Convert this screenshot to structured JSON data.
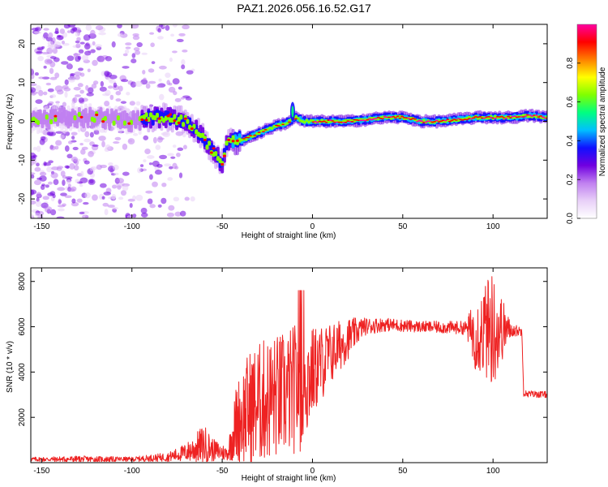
{
  "title": "PAZ1.2026.056.16.52.G17",
  "chart_data": [
    {
      "type": "heatmap",
      "name": "spectrogram",
      "title": "PAZ1.2026.056.16.52.G17",
      "xlabel": "Height of straight line (km)",
      "ylabel": "Frequency (Hz)",
      "xlim": [
        -156,
        130
      ],
      "ylim": [
        -25,
        25
      ],
      "xticks": [
        -150,
        -100,
        -50,
        0,
        50,
        100
      ],
      "yticks": [
        -20,
        -10,
        0,
        10,
        20
      ],
      "colorbar": {
        "label": "Normalized spectral amplitude",
        "range": [
          0,
          1
        ],
        "ticks": [
          "0.0",
          "0.2",
          "0.4",
          "0.6",
          "0.8"
        ],
        "tick_values": [
          0,
          0.2,
          0.4,
          0.6,
          0.8
        ],
        "colors": [
          "#ffffff",
          "#e8d0f8",
          "#c080f0",
          "#7000e0",
          "#1010ff",
          "#00c0ff",
          "#00ff80",
          "#80ff00",
          "#ffff00",
          "#ff8000",
          "#ff0000",
          "#ff00a0"
        ]
      },
      "ridge": [
        [
          -156,
          0.5
        ],
        [
          -140,
          1
        ],
        [
          -130,
          1
        ],
        [
          -120,
          1
        ],
        [
          -110,
          0.5
        ],
        [
          -100,
          0
        ],
        [
          -90,
          1
        ],
        [
          -80,
          1
        ],
        [
          -70,
          0
        ],
        [
          -65,
          -2
        ],
        [
          -60,
          -5
        ],
        [
          -55,
          -8
        ],
        [
          -50,
          -11
        ],
        [
          -48,
          -6
        ],
        [
          -45,
          -5
        ],
        [
          -40,
          -5
        ],
        [
          -35,
          -4
        ],
        [
          -30,
          -3
        ],
        [
          -25,
          -2
        ],
        [
          -20,
          -1
        ],
        [
          -15,
          -0.5
        ],
        [
          -10,
          1
        ],
        [
          -5,
          0
        ],
        [
          0,
          0
        ],
        [
          10,
          0
        ],
        [
          20,
          0
        ],
        [
          30,
          0.5
        ],
        [
          40,
          1
        ],
        [
          50,
          1
        ],
        [
          60,
          0
        ],
        [
          70,
          0
        ],
        [
          80,
          0.5
        ],
        [
          90,
          1
        ],
        [
          100,
          1
        ],
        [
          110,
          1
        ],
        [
          120,
          1.5
        ],
        [
          130,
          1
        ]
      ]
    },
    {
      "type": "line",
      "name": "snr",
      "xlabel": "Height of straight line (km)",
      "ylabel": "SNR (10 * v/v)",
      "xlim": [
        -156,
        130
      ],
      "ylim": [
        0,
        8600
      ],
      "xticks": [
        -150,
        -100,
        -50,
        0,
        50,
        100
      ],
      "yticks": [
        2000,
        4000,
        6000,
        8000
      ],
      "color": "#ee2222",
      "envelope": [
        {
          "x": -156,
          "base": 150,
          "amp": 100
        },
        {
          "x": -140,
          "base": 150,
          "amp": 120
        },
        {
          "x": -130,
          "base": 150,
          "amp": 150
        },
        {
          "x": -100,
          "base": 150,
          "amp": 100
        },
        {
          "x": -80,
          "base": 250,
          "amp": 200
        },
        {
          "x": -70,
          "base": 450,
          "amp": 400
        },
        {
          "x": -60,
          "base": 800,
          "amp": 900
        },
        {
          "x": -55,
          "base": 550,
          "amp": 500
        },
        {
          "x": -47,
          "base": 400,
          "amp": 300
        },
        {
          "x": -42,
          "base": 1800,
          "amp": 1800
        },
        {
          "x": -35,
          "base": 2400,
          "amp": 2600
        },
        {
          "x": -25,
          "base": 2800,
          "amp": 2800
        },
        {
          "x": -15,
          "base": 3000,
          "amp": 2800
        },
        {
          "x": -5,
          "base": 3500,
          "amp": 3000
        },
        {
          "x": 0,
          "base": 4000,
          "amp": 2000
        },
        {
          "x": 10,
          "base": 4800,
          "amp": 1400
        },
        {
          "x": 20,
          "base": 5500,
          "amp": 900
        },
        {
          "x": 28,
          "base": 6000,
          "amp": 400
        },
        {
          "x": 40,
          "base": 6100,
          "amp": 300
        },
        {
          "x": 60,
          "base": 6000,
          "amp": 250
        },
        {
          "x": 85,
          "base": 5950,
          "amp": 300
        },
        {
          "x": 90,
          "base": 5700,
          "amp": 1600
        },
        {
          "x": 100,
          "base": 5900,
          "amp": 2600
        },
        {
          "x": 106,
          "base": 5900,
          "amp": 1200
        },
        {
          "x": 110,
          "base": 5850,
          "amp": 300
        },
        {
          "x": 116,
          "base": 5800,
          "amp": 200
        },
        {
          "x": 117,
          "base": 3050,
          "amp": 150
        },
        {
          "x": 130,
          "base": 3000,
          "amp": 150
        }
      ]
    }
  ]
}
